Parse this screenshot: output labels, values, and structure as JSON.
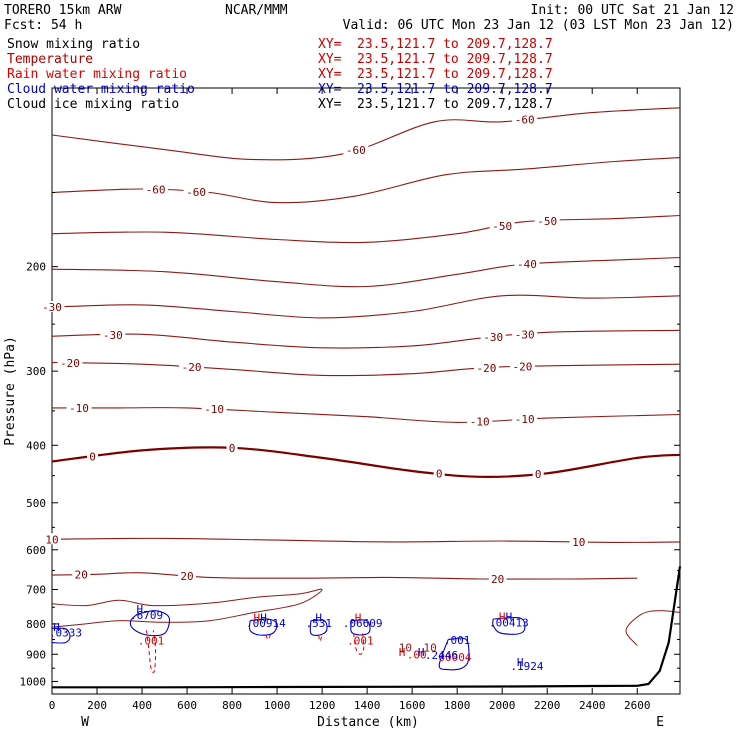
{
  "header": {
    "model": "TORERO  15km ARW",
    "center": "NCAR/MMM",
    "init": "Init: 00 UTC Sat 21 Jan 12",
    "fcst": "Fcst:   54 h",
    "valid": "Valid: 06 UTC Mon 23 Jan 12 (03 LST Mon 23 Jan 12)"
  },
  "fields": [
    {
      "label": "Snow mixing ratio",
      "xy_prefix": "XY=",
      "xy": "23.5,121.7 to 209.7,128.7",
      "color": "#000000",
      "xy_color": "#cc0000"
    },
    {
      "label": "Temperature",
      "xy_prefix": "XY=",
      "xy": "23.5,121.7 to 209.7,128.7",
      "color": "#aa0000",
      "xy_color": "#cc0000"
    },
    {
      "label": "Rain water mixing ratio",
      "xy_prefix": "XY=",
      "xy": "23.5,121.7 to 209.7,128.7",
      "color": "#dd0000",
      "xy_color": "#cc0000"
    },
    {
      "label": "Cloud water mixing ratio",
      "xy_prefix": "XY=",
      "xy": "23.5,121.7 to 209.7,128.7",
      "color": "#0000cc",
      "xy_color": "#0000cc"
    },
    {
      "label": "Cloud ice mixing ratio",
      "xy_prefix": "XY=",
      "xy": "23.5,121.7 to 209.7,128.7",
      "color": "#000000",
      "xy_color": "#000000"
    }
  ],
  "chart_data": {
    "type": "cross-section",
    "xlabel": "Distance (km)",
    "ylabel": "Pressure (hPa)",
    "xlim": [
      0,
      2790
    ],
    "ylim": [
      1050,
      100
    ],
    "xticks": [
      0,
      200,
      400,
      600,
      800,
      1000,
      1200,
      1400,
      1600,
      1800,
      2000,
      2200,
      2400,
      2600
    ],
    "yticks": [
      200,
      300,
      400,
      500,
      600,
      700,
      800,
      900,
      1000
    ],
    "endpoints": {
      "left": "W",
      "right": "E"
    },
    "temperature_isotherms": [
      {
        "value": -60,
        "points": [
          [
            0,
            120
          ],
          [
            500,
            127
          ],
          [
            900,
            132
          ],
          [
            1300,
            129
          ],
          [
            1700,
            114
          ],
          [
            2000,
            114
          ],
          [
            2400,
            110
          ],
          [
            2790,
            108
          ]
        ],
        "labels": [
          [
            1350,
            -60
          ],
          [
            2100,
            -60
          ]
        ]
      },
      {
        "value": -60,
        "points": [
          [
            0,
            150
          ],
          [
            400,
            148
          ],
          [
            700,
            150
          ],
          [
            1000,
            156
          ],
          [
            1350,
            152
          ],
          [
            1750,
            140
          ],
          [
            2100,
            137
          ],
          [
            2500,
            133
          ],
          [
            2790,
            131
          ]
        ],
        "labels": [
          [
            460,
            -60
          ],
          [
            640,
            -60
          ]
        ]
      },
      {
        "value": -50,
        "points": [
          [
            0,
            176
          ],
          [
            500,
            175
          ],
          [
            1000,
            180
          ],
          [
            1400,
            182
          ],
          [
            1800,
            176
          ],
          [
            2100,
            168
          ],
          [
            2500,
            166
          ],
          [
            2790,
            164
          ]
        ],
        "labels": [
          [
            2000,
            -50
          ],
          [
            2200,
            -50
          ]
        ]
      },
      {
        "value": -40,
        "points": [
          [
            0,
            202
          ],
          [
            500,
            204
          ],
          [
            1000,
            212
          ],
          [
            1400,
            216
          ],
          [
            1800,
            206
          ],
          [
            2100,
            198
          ],
          [
            2500,
            195
          ],
          [
            2790,
            193
          ]
        ],
        "labels": [
          [
            2110,
            -40
          ]
        ]
      },
      {
        "value": -30,
        "points": [
          [
            0,
            234
          ],
          [
            400,
            232
          ],
          [
            800,
            238
          ],
          [
            1200,
            244
          ],
          [
            1600,
            238
          ],
          [
            2000,
            224
          ],
          [
            2400,
            226
          ],
          [
            2790,
            224
          ]
        ],
        "labels": [
          [
            0,
            -30
          ]
        ]
      },
      {
        "value": -30,
        "points": [
          [
            0,
            262
          ],
          [
            400,
            260
          ],
          [
            800,
            268
          ],
          [
            1200,
            274
          ],
          [
            1600,
            272
          ],
          [
            1900,
            264
          ],
          [
            2200,
            258
          ],
          [
            2790,
            256
          ]
        ],
        "labels": [
          [
            270,
            -30
          ],
          [
            1960,
            -30
          ],
          [
            2100,
            -30
          ]
        ]
      },
      {
        "value": -20,
        "points": [
          [
            0,
            290
          ],
          [
            400,
            292
          ],
          [
            800,
            298
          ],
          [
            1200,
            305
          ],
          [
            1600,
            303
          ],
          [
            2000,
            295
          ],
          [
            2790,
            292
          ]
        ],
        "labels": [
          [
            80,
            -20
          ],
          [
            620,
            -20
          ],
          [
            1930,
            -20
          ],
          [
            2090,
            -20
          ]
        ]
      },
      {
        "value": -10,
        "points": [
          [
            0,
            346
          ],
          [
            300,
            346
          ],
          [
            600,
            346
          ],
          [
            1000,
            352
          ],
          [
            1400,
            358
          ],
          [
            1800,
            366
          ],
          [
            2200,
            360
          ],
          [
            2790,
            355
          ]
        ],
        "labels": [
          [
            120,
            -10
          ],
          [
            720,
            -10
          ],
          [
            1900,
            -10
          ],
          [
            2100,
            -10
          ]
        ]
      },
      {
        "value": 0,
        "points": [
          [
            0,
            426
          ],
          [
            400,
            408
          ],
          [
            800,
            404
          ],
          [
            1200,
            420
          ],
          [
            1600,
            442
          ],
          [
            1900,
            452
          ],
          [
            2200,
            446
          ],
          [
            2600,
            420
          ],
          [
            2790,
            415
          ]
        ],
        "labels": [
          [
            180,
            0
          ],
          [
            800,
            0
          ],
          [
            1720,
            0
          ],
          [
            2160,
            0
          ]
        ]
      },
      {
        "value": 10,
        "points": [
          [
            0,
            576
          ],
          [
            500,
            574
          ],
          [
            1000,
            578
          ],
          [
            1500,
            582
          ],
          [
            2000,
            580
          ],
          [
            2500,
            583
          ],
          [
            2790,
            582
          ]
        ],
        "labels": [
          [
            0,
            10
          ],
          [
            2340,
            10
          ]
        ]
      },
      {
        "value": 20,
        "points": [
          [
            0,
            662
          ],
          [
            200,
            660
          ],
          [
            400,
            656
          ],
          [
            700,
            668
          ],
          [
            1100,
            670
          ],
          [
            1500,
            668
          ],
          [
            1900,
            672
          ],
          [
            2300,
            672
          ],
          [
            2600,
            670
          ]
        ],
        "labels": [
          [
            130,
            20
          ],
          [
            600,
            20
          ],
          [
            1980,
            20
          ]
        ]
      }
    ],
    "rain_labels": [
      {
        "x": 440,
        "p": 867,
        "text": ".001"
      },
      {
        "x": 1370,
        "p": 866,
        "text": ".001"
      },
      {
        "x": 1620,
        "p": 914,
        "text": ".00"
      },
      {
        "x": 1790,
        "p": 924,
        "text": "00004"
      }
    ],
    "cloud_water_labels": [
      {
        "x": 420,
        "p": 785,
        "text": ".6709"
      },
      {
        "x": 950,
        "p": 810,
        "text": ".00914"
      },
      {
        "x": 1185,
        "p": 810,
        "text": ".531"
      },
      {
        "x": 1380,
        "p": 810,
        "text": ".06609"
      },
      {
        "x": 2030,
        "p": 808,
        "text": ".00413"
      },
      {
        "x": 1730,
        "p": 916,
        "text": ".2446"
      },
      {
        "x": 1800,
        "p": 864,
        "text": ".001"
      },
      {
        "x": 2110,
        "p": 956,
        "text": ".1924"
      },
      {
        "x": 60,
        "p": 840,
        "text": ".0333"
      }
    ],
    "highs": [
      {
        "x": 390,
        "p": 767,
        "text": "H",
        "color": "#0000cc"
      },
      {
        "x": 910,
        "p": 792,
        "text": "H",
        "color": "#dd0000"
      },
      {
        "x": 940,
        "p": 792,
        "text": "H",
        "color": "#0000cc"
      },
      {
        "x": 1185,
        "p": 792,
        "text": "H",
        "color": "#0000cc"
      },
      {
        "x": 1360,
        "p": 792,
        "text": "H",
        "color": "#dd0000"
      },
      {
        "x": 2000,
        "p": 790,
        "text": "H",
        "color": "#dd0000"
      },
      {
        "x": 2030,
        "p": 790,
        "text": "H",
        "color": "#0000cc"
      },
      {
        "x": 1555,
        "p": 906,
        "text": "H",
        "color": "#dd0000"
      },
      {
        "x": 1640,
        "p": 906,
        "text": "H",
        "color": "#0000cc"
      },
      {
        "x": 2080,
        "p": 941,
        "text": "H",
        "color": "#0000cc"
      },
      {
        "x": 20,
        "p": 822,
        "text": "H",
        "color": "#0000cc"
      }
    ],
    "snow_labels": [
      {
        "x": 1570,
        "p": 891,
        "text": "10"
      },
      {
        "x": 1680,
        "p": 891,
        "text": "10"
      }
    ],
    "terrain": [
      [
        0,
        1023
      ],
      [
        500,
        1023
      ],
      [
        1000,
        1022
      ],
      [
        1500,
        1021
      ],
      [
        2000,
        1020
      ],
      [
        2400,
        1018
      ],
      [
        2600,
        1017
      ],
      [
        2650,
        1010
      ],
      [
        2700,
        960
      ],
      [
        2740,
        860
      ],
      [
        2770,
        720
      ],
      [
        2790,
        640
      ]
    ]
  }
}
